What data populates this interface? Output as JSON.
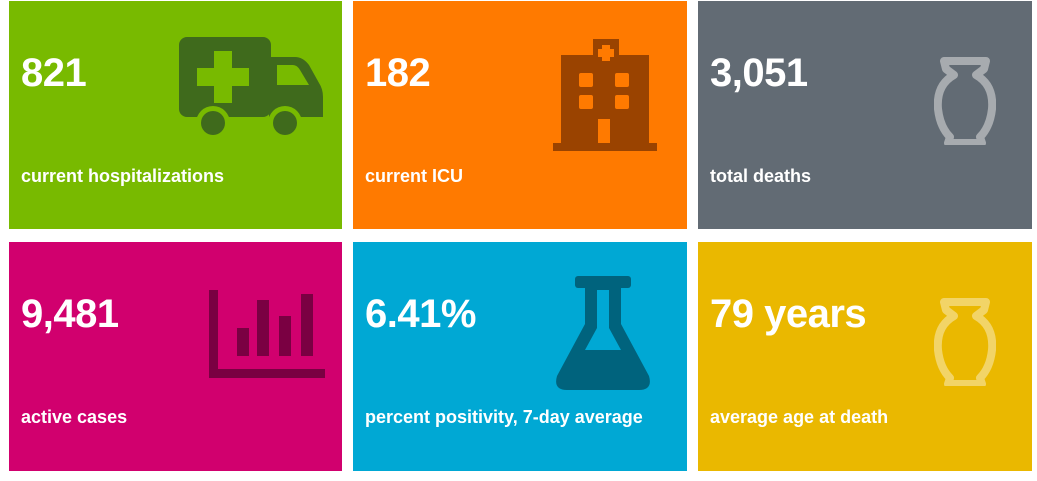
{
  "tiles": [
    {
      "value": "821",
      "label": "current hospitalizations",
      "color": "#78BA00",
      "icon": "ambulance-icon",
      "icon_color": "#3F6A1C"
    },
    {
      "value": "182",
      "label": "current ICU",
      "color": "#FF7A00",
      "icon": "hospital-icon",
      "icon_color": "#9A4300"
    },
    {
      "value": "3,051",
      "label": "total deaths",
      "color": "#626B74",
      "icon": "urn-icon",
      "icon_color": "#A7ABAF"
    },
    {
      "value": "9,481",
      "label": "active cases",
      "color": "#D1006E",
      "icon": "bar-chart-icon",
      "icon_color": "#7A0042"
    },
    {
      "value": "6.41%",
      "label": "percent positivity, 7-day average",
      "color": "#00A8D4",
      "icon": "flask-icon",
      "icon_color": "#00637D"
    },
    {
      "value": "79 years",
      "label": "average age at death",
      "color": "#EAB800",
      "icon": "urn-icon",
      "icon_color": "#F2D467"
    }
  ]
}
